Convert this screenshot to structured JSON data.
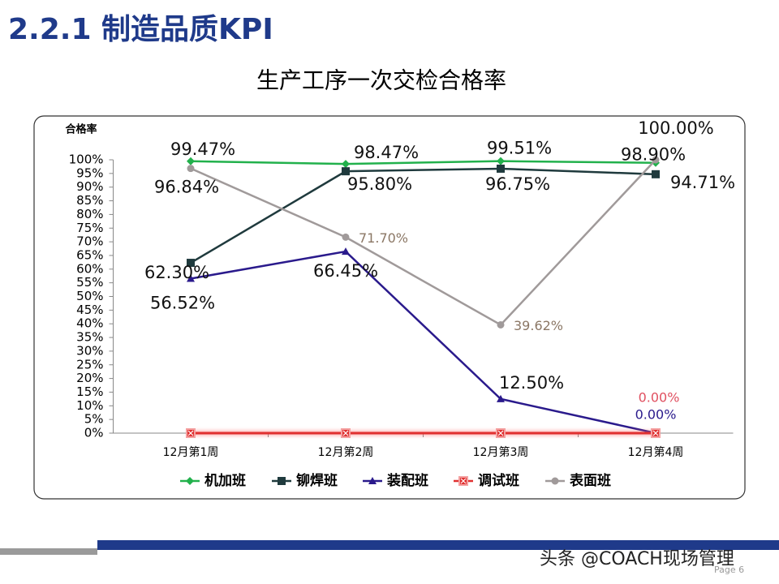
{
  "header": {
    "title": "2.2.1  制造品质KPI"
  },
  "footer": {
    "watermark": "头条 @COACH现场管理",
    "page": "Page 6"
  },
  "chart_data": {
    "type": "line",
    "title": "生产工序一次交检合格率",
    "y_label": "合格率",
    "categories": [
      "12月第1周",
      "12月第2周",
      "12月第3周",
      "12月第4周"
    ],
    "ylim": [
      0,
      100
    ],
    "yticks": [
      {
        "value": 0,
        "label": "0%"
      },
      {
        "value": 5,
        "label": "5%"
      },
      {
        "value": 10,
        "label": "10%"
      },
      {
        "value": 15,
        "label": "15%"
      },
      {
        "value": 20,
        "label": "20%"
      },
      {
        "value": 25,
        "label": "25%"
      },
      {
        "value": 30,
        "label": "30%"
      },
      {
        "value": 35,
        "label": "35%"
      },
      {
        "value": 40,
        "label": "40%"
      },
      {
        "value": 45,
        "label": "45%"
      },
      {
        "value": 50,
        "label": "50%"
      },
      {
        "value": 55,
        "label": "55%"
      },
      {
        "value": 60,
        "label": "60%"
      },
      {
        "value": 65,
        "label": "65%"
      },
      {
        "value": 70,
        "label": "70%"
      },
      {
        "value": 75,
        "label": "75%"
      },
      {
        "value": 80,
        "label": "80%"
      },
      {
        "value": 85,
        "label": "85%"
      },
      {
        "value": 90,
        "label": "90%"
      },
      {
        "value": 95,
        "label": "95%"
      },
      {
        "value": 100,
        "label": "100%"
      }
    ],
    "grid": false,
    "legend": "bottom",
    "series": [
      {
        "name": "机加班",
        "color": "#22b14c",
        "marker": "diamond",
        "values": [
          99.47,
          98.47,
          99.51,
          98.9
        ],
        "value_labels": [
          "99.47%",
          "98.47%",
          "99.51%",
          "98.90%"
        ]
      },
      {
        "name": "铆焊班",
        "color": "#1f3a3d",
        "marker": "square",
        "values": [
          62.3,
          95.8,
          96.75,
          94.71
        ],
        "value_labels": [
          "62.30%",
          "95.80%",
          "96.75%",
          "94.71%"
        ]
      },
      {
        "name": "装配班",
        "color": "#2a1a8c",
        "marker": "triangle",
        "values": [
          56.52,
          66.45,
          12.5,
          0.0
        ],
        "value_labels": [
          "56.52%",
          "66.45%",
          "12.50%",
          "0.00%"
        ]
      },
      {
        "name": "调试班",
        "color": "#e03030",
        "marker": "xsquare",
        "values": [
          0.0,
          0.0,
          0.0,
          0.0
        ],
        "value_labels": [
          null,
          null,
          null,
          "0.00%"
        ]
      },
      {
        "name": "表面班",
        "color": "#a09a9a",
        "marker": "circle",
        "values": [
          96.84,
          71.7,
          39.62,
          100.0
        ],
        "value_labels": [
          "96.84%",
          "71.70%",
          "39.62%",
          "100.00%"
        ]
      }
    ]
  }
}
